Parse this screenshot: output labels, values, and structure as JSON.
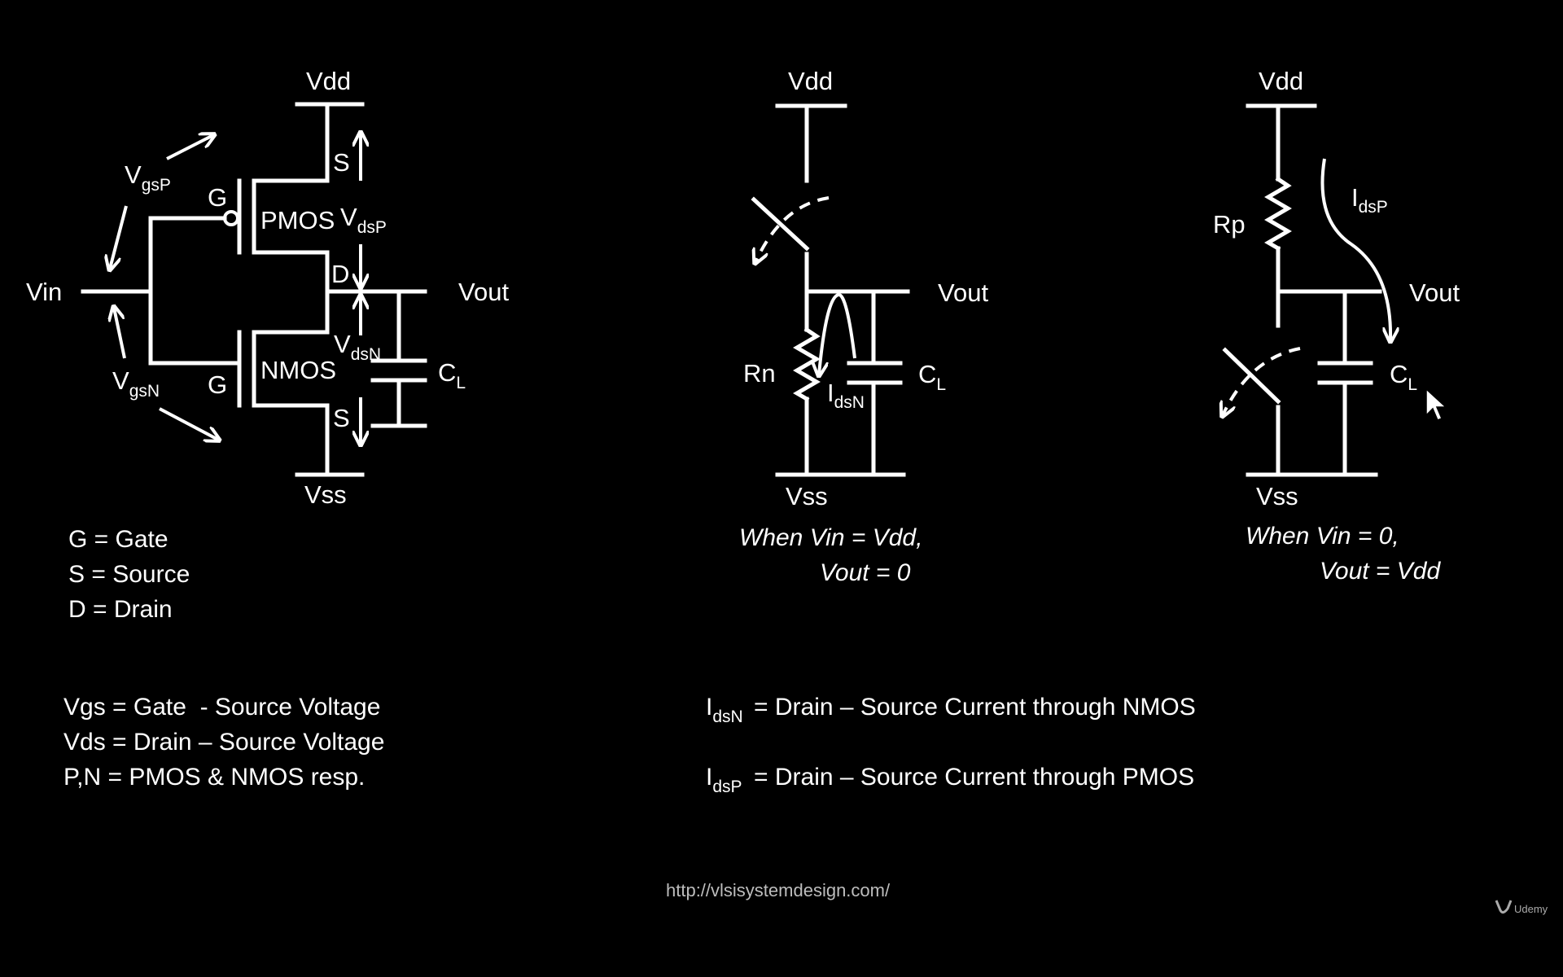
{
  "circuit1": {
    "vdd": "Vdd",
    "vss": "Vss",
    "vin": "Vin",
    "vout": "Vout",
    "pmos": "PMOS",
    "nmos": "NMOS",
    "gate_p": "G",
    "gate_n": "G",
    "source_p": "S",
    "drain": "D",
    "source_n": "S",
    "vgsp_main": "V",
    "vgsp_sub": "gsP",
    "vgsn_main": "V",
    "vgsn_sub": "gsN",
    "vdsp_main": "V",
    "vdsp_sub": "dsP",
    "vdsn_main": "V",
    "vdsn_sub": "dsN",
    "cl_main": "C",
    "cl_sub": "L"
  },
  "circuit2": {
    "vdd": "Vdd",
    "vss": "Vss",
    "vout": "Vout",
    "rn": "Rn",
    "cl_main": "C",
    "cl_sub": "L",
    "idsn_main": "I",
    "idsn_sub": "dsN",
    "caption_line1": "When Vin = Vdd,",
    "caption_line2": "Vout = 0"
  },
  "circuit3": {
    "vdd": "Vdd",
    "vss": "Vss",
    "vout": "Vout",
    "rp": "Rp",
    "cl_main": "C",
    "cl_sub": "L",
    "idsp_main": "I",
    "idsp_sub": "dsP",
    "caption_line1": "When Vin = 0,",
    "caption_line2": "Vout = Vdd"
  },
  "legend_terminals": [
    "G = Gate",
    "S = Source",
    "D = Drain"
  ],
  "legend_voltages": [
    "Vgs = Gate  - Source Voltage",
    "Vds = Drain – Source Voltage",
    "P,N = PMOS & NMOS resp."
  ],
  "legend_currents": [
    {
      "main": "I",
      "sub": "dsN",
      "text": "= Drain – Source Current through NMOS"
    },
    {
      "main": "I",
      "sub": "dsP",
      "text": "= Drain – Source Current through PMOS"
    }
  ],
  "footer_url": "http://vlsisystemdesign.com/",
  "brand": "Udemy",
  "colors": {
    "background": "#000000",
    "foreground": "#ffffff"
  }
}
